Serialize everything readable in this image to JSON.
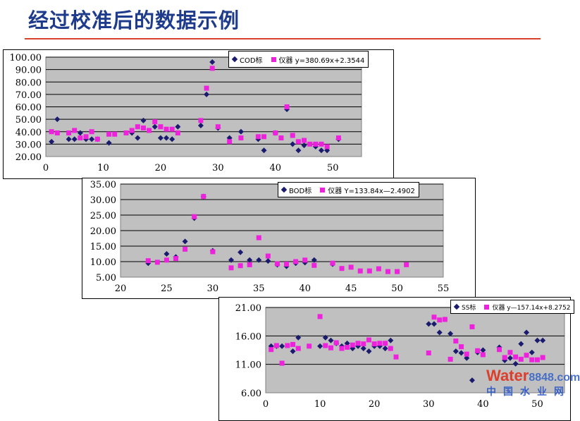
{
  "title": "经过校准后的数据示例",
  "watermark": {
    "brand": "Water",
    "domain": "8848.com",
    "cn": "中国水业网"
  },
  "colors": {
    "standard": "#1a1a6e",
    "instrument": "#ee22dd",
    "plot_bg": "#c0c0c0",
    "title": "#1f3c8c",
    "underline": "#d9402b"
  },
  "chart_data": [
    {
      "type": "scatter",
      "legend": {
        "standard": "COD标",
        "instrument": "仪器 y=380.69x+2.3544"
      },
      "xlim": [
        0,
        55
      ],
      "xticks": [
        0,
        10,
        20,
        30,
        40,
        50
      ],
      "ylim": [
        20,
        100
      ],
      "yticks": [
        20,
        30,
        40,
        50,
        60,
        70,
        80,
        90,
        100
      ],
      "grid": true,
      "legend_position": "top-right",
      "series": [
        {
          "name": "COD标",
          "marker": "diamond",
          "points": [
            [
              1,
              32
            ],
            [
              2,
              50
            ],
            [
              4,
              34
            ],
            [
              5,
              34
            ],
            [
              6,
              39
            ],
            [
              7,
              34
            ],
            [
              8,
              34
            ],
            [
              9,
              34
            ],
            [
              11,
              31
            ],
            [
              15,
              39
            ],
            [
              16,
              35
            ],
            [
              17,
              49
            ],
            [
              19,
              44
            ],
            [
              20,
              35
            ],
            [
              21,
              35
            ],
            [
              22,
              34
            ],
            [
              23,
              44
            ],
            [
              27,
              45
            ],
            [
              28,
              70
            ],
            [
              29,
              96
            ],
            [
              30,
              43
            ],
            [
              32,
              35
            ],
            [
              34,
              40
            ],
            [
              37,
              34
            ],
            [
              38,
              25
            ],
            [
              40,
              39
            ],
            [
              42,
              58
            ],
            [
              43,
              30
            ],
            [
              44,
              25
            ],
            [
              45,
              29
            ],
            [
              47,
              28
            ],
            [
              48,
              25
            ],
            [
              49,
              25
            ],
            [
              51,
              34
            ]
          ]
        },
        {
          "name": "仪器",
          "marker": "square",
          "points": [
            [
              1,
              40
            ],
            [
              2,
              39
            ],
            [
              4,
              39
            ],
            [
              5,
              41
            ],
            [
              6,
              35
            ],
            [
              7,
              36
            ],
            [
              8,
              40
            ],
            [
              9,
              34
            ],
            [
              11,
              38
            ],
            [
              12,
              38
            ],
            [
              14,
              39
            ],
            [
              15,
              41
            ],
            [
              16,
              44
            ],
            [
              17,
              43
            ],
            [
              18,
              41
            ],
            [
              19,
              48
            ],
            [
              20,
              44
            ],
            [
              21,
              42
            ],
            [
              22,
              42
            ],
            [
              23,
              39
            ],
            [
              27,
              49
            ],
            [
              28,
              75
            ],
            [
              29,
              91
            ],
            [
              30,
              44
            ],
            [
              32,
              32
            ],
            [
              34,
              35
            ],
            [
              37,
              36
            ],
            [
              38,
              36
            ],
            [
              40,
              39
            ],
            [
              41,
              35
            ],
            [
              42,
              60
            ],
            [
              43,
              37
            ],
            [
              44,
              32
            ],
            [
              45,
              33
            ],
            [
              46,
              30
            ],
            [
              47,
              30
            ],
            [
              48,
              30
            ],
            [
              49,
              28
            ],
            [
              51,
              35
            ]
          ]
        }
      ]
    },
    {
      "type": "scatter",
      "legend": {
        "standard": "BOD标",
        "instrument": "仪器 Y=133.84x—2.4902"
      },
      "xlim": [
        20,
        55
      ],
      "xticks": [
        20,
        25,
        30,
        35,
        40,
        45,
        50,
        55
      ],
      "ylim": [
        5,
        35
      ],
      "yticks": [
        5,
        10,
        15,
        20,
        25,
        30,
        35
      ],
      "grid": true,
      "legend_position": "top-right",
      "series": [
        {
          "name": "BOD标",
          "marker": "diamond",
          "points": [
            [
              23,
              9.5
            ],
            [
              25,
              12.5
            ],
            [
              26,
              11.5
            ],
            [
              27,
              16.5
            ],
            [
              28,
              24
            ],
            [
              29,
              31
            ],
            [
              30,
              13.5
            ],
            [
              32,
              10.5
            ],
            [
              33,
              13
            ],
            [
              34,
              10.5
            ],
            [
              35,
              10.5
            ],
            [
              36,
              10.2
            ],
            [
              37,
              9
            ],
            [
              38,
              8.5
            ],
            [
              39,
              9.5
            ],
            [
              40,
              9.7
            ],
            [
              41,
              10.5
            ],
            [
              43,
              9.2
            ]
          ]
        },
        {
          "name": "仪器",
          "marker": "square",
          "points": [
            [
              23,
              10.3
            ],
            [
              24,
              9.8
            ],
            [
              25,
              10.5
            ],
            [
              26,
              11
            ],
            [
              27,
              14
            ],
            [
              28,
              24.5
            ],
            [
              29,
              31
            ],
            [
              30,
              13.2
            ],
            [
              32,
              8
            ],
            [
              33,
              8.7
            ],
            [
              34,
              9
            ],
            [
              35,
              17.7
            ],
            [
              36,
              11.8
            ],
            [
              37,
              9.3
            ],
            [
              38,
              9.2
            ],
            [
              39,
              10
            ],
            [
              40,
              10.5
            ],
            [
              41,
              8.8
            ],
            [
              43,
              9.5
            ],
            [
              44,
              7.8
            ],
            [
              45,
              8.2
            ],
            [
              46,
              7
            ],
            [
              47,
              7
            ],
            [
              48,
              7.7
            ],
            [
              49,
              6.8
            ],
            [
              50,
              6.8
            ],
            [
              51,
              9
            ]
          ]
        }
      ]
    },
    {
      "type": "scatter",
      "legend": {
        "standard": "SS标",
        "instrument": "仪器 y—157.14x+8.2752"
      },
      "xlim": [
        0,
        55
      ],
      "xticks": [
        0,
        10,
        20,
        30,
        40,
        50
      ],
      "ylim": [
        6,
        21
      ],
      "yticks": [
        6,
        11,
        16,
        21
      ],
      "grid": true,
      "legend_position": "top-right",
      "series": [
        {
          "name": "SS标",
          "marker": "diamond",
          "points": [
            [
              1,
              14.2
            ],
            [
              2,
              14.2
            ],
            [
              3,
              14.2
            ],
            [
              5,
              13.3
            ],
            [
              6,
              15.7
            ],
            [
              10,
              14.2
            ],
            [
              11,
              15.7
            ],
            [
              12,
              15.2
            ],
            [
              13,
              14.7
            ],
            [
              14,
              14.2
            ],
            [
              15,
              14.7
            ],
            [
              16,
              13.8
            ],
            [
              17,
              14.2
            ],
            [
              18,
              13.8
            ],
            [
              19,
              13.3
            ],
            [
              20,
              14.2
            ],
            [
              21,
              14.2
            ],
            [
              22,
              13.8
            ],
            [
              23,
              15.2
            ],
            [
              30,
              18.1
            ],
            [
              31,
              18.1
            ],
            [
              32,
              16.6
            ],
            [
              34,
              16.4
            ],
            [
              35,
              13.3
            ],
            [
              36,
              13
            ],
            [
              37,
              12.1
            ],
            [
              38,
              8.2
            ],
            [
              39,
              13.1
            ],
            [
              40,
              13.5
            ],
            [
              43,
              14
            ],
            [
              44,
              11.7
            ],
            [
              45,
              12.1
            ],
            [
              46,
              11.1
            ],
            [
              47,
              14.6
            ],
            [
              48,
              16.6
            ],
            [
              49,
              13.1
            ],
            [
              50,
              15.2
            ],
            [
              51,
              15.2
            ]
          ]
        },
        {
          "name": "仪器",
          "marker": "square",
          "points": [
            [
              1,
              13.6
            ],
            [
              2,
              14.3
            ],
            [
              3,
              11.2
            ],
            [
              4,
              14.3
            ],
            [
              5,
              14.5
            ],
            [
              6,
              13.8
            ],
            [
              8,
              14.2
            ],
            [
              10,
              19.4
            ],
            [
              11,
              14.3
            ],
            [
              12,
              13.9
            ],
            [
              13,
              14.8
            ],
            [
              14,
              13.8
            ],
            [
              15,
              14
            ],
            [
              16,
              14.4
            ],
            [
              17,
              14.7
            ],
            [
              18,
              14.6
            ],
            [
              19,
              15.3
            ],
            [
              20,
              14.6
            ],
            [
              21,
              14.7
            ],
            [
              22,
              14.7
            ],
            [
              23,
              13.8
            ],
            [
              24,
              12.3
            ],
            [
              30,
              13
            ],
            [
              31,
              19.3
            ],
            [
              32,
              18.8
            ],
            [
              33,
              18.9
            ],
            [
              34,
              11.9
            ],
            [
              35,
              15.1
            ],
            [
              36,
              14.1
            ],
            [
              37,
              12.8
            ],
            [
              38,
              17.6
            ],
            [
              39,
              13.4
            ],
            [
              40,
              12.7
            ],
            [
              43,
              13.6
            ],
            [
              44,
              12.2
            ],
            [
              45,
              13.1
            ],
            [
              46,
              12.3
            ],
            [
              47,
              11.9
            ],
            [
              48,
              12.6
            ],
            [
              49,
              11.8
            ],
            [
              50,
              11.8
            ],
            [
              51,
              12.2
            ]
          ]
        }
      ]
    }
  ]
}
